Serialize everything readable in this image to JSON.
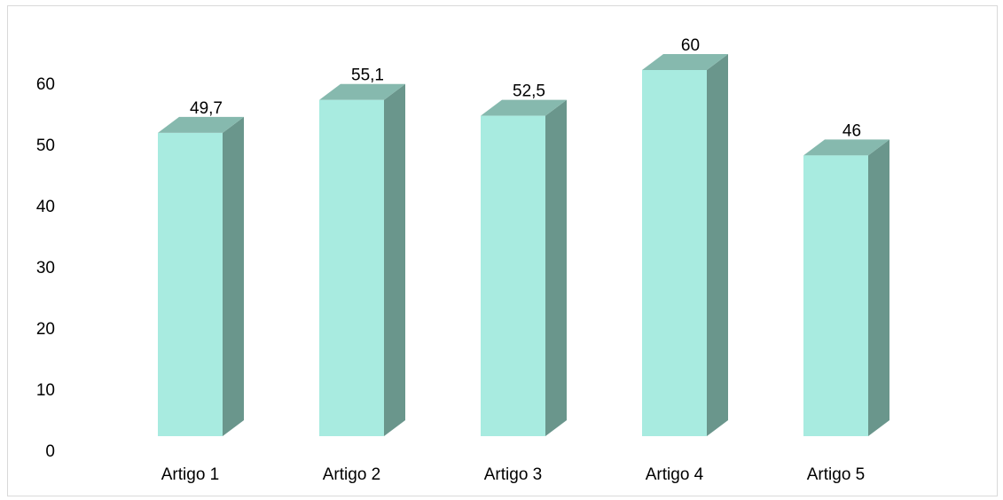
{
  "chart_data": {
    "type": "bar",
    "style": "3d-column",
    "categories": [
      "Artigo 1",
      "Artigo 2",
      "Artigo 3",
      "Artigo 4",
      "Artigo 5"
    ],
    "values": [
      49.7,
      55.1,
      52.5,
      60,
      46
    ],
    "data_labels": [
      "49,7",
      "55,1",
      "52,5",
      "60",
      "46"
    ],
    "yticks": [
      0,
      10,
      20,
      30,
      40,
      50,
      60
    ],
    "ylim": [
      0,
      60
    ],
    "grid": false,
    "title": "",
    "xlabel": "",
    "ylabel": "",
    "colors": {
      "front": "#a8ebe0",
      "side": "#6a968c",
      "top": "#86b9ae"
    }
  }
}
